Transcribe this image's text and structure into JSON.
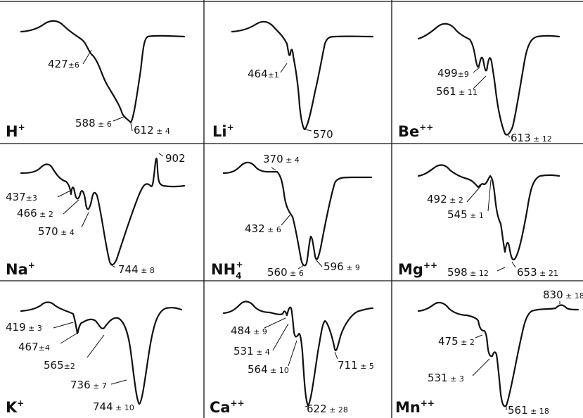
{
  "panels": [
    {
      "id": "H",
      "ion": {
        "base": "H",
        "sup": "+",
        "sub": ""
      },
      "bands": [
        {
          "wavenumber": "427",
          "error": "6"
        },
        {
          "wavenumber": "588",
          "error": "6"
        },
        {
          "wavenumber": "612",
          "error": "4"
        }
      ]
    },
    {
      "id": "Li",
      "ion": {
        "base": "Li",
        "sup": "+",
        "sub": ""
      },
      "bands": [
        {
          "wavenumber": "464",
          "error": "1"
        },
        {
          "wavenumber": "570",
          "error": ""
        }
      ]
    },
    {
      "id": "Be",
      "ion": {
        "base": "Be",
        "sup": "++",
        "sub": ""
      },
      "bands": [
        {
          "wavenumber": "499",
          "error": "9"
        },
        {
          "wavenumber": "561",
          "error": "11"
        },
        {
          "wavenumber": "613",
          "error": "12"
        }
      ]
    },
    {
      "id": "Na",
      "ion": {
        "base": "Na",
        "sup": "+",
        "sub": ""
      },
      "bands": [
        {
          "wavenumber": "437",
          "error": "3"
        },
        {
          "wavenumber": "466",
          "error": "2"
        },
        {
          "wavenumber": "570",
          "error": "4"
        },
        {
          "wavenumber": "744",
          "error": "8"
        },
        {
          "wavenumber": "902",
          "error": ""
        }
      ]
    },
    {
      "id": "NH4",
      "ion": {
        "base": "NH",
        "sup": "+",
        "sub": "4"
      },
      "bands": [
        {
          "wavenumber": "370",
          "error": "4"
        },
        {
          "wavenumber": "432",
          "error": "6"
        },
        {
          "wavenumber": "560",
          "error": "6"
        },
        {
          "wavenumber": "596",
          "error": "9"
        }
      ]
    },
    {
      "id": "Mg",
      "ion": {
        "base": "Mg",
        "sup": "++",
        "sub": ""
      },
      "bands": [
        {
          "wavenumber": "492",
          "error": "2"
        },
        {
          "wavenumber": "545",
          "error": "1"
        },
        {
          "wavenumber": "598",
          "error": "12"
        },
        {
          "wavenumber": "653",
          "error": "21"
        }
      ]
    },
    {
      "id": "K",
      "ion": {
        "base": "K",
        "sup": "+",
        "sub": ""
      },
      "bands": [
        {
          "wavenumber": "419",
          "error": "3"
        },
        {
          "wavenumber": "467",
          "error": "4"
        },
        {
          "wavenumber": "565",
          "error": "2"
        },
        {
          "wavenumber": "736",
          "error": "7"
        },
        {
          "wavenumber": "744",
          "error": "10"
        }
      ]
    },
    {
      "id": "Ca",
      "ion": {
        "base": "Ca",
        "sup": "++",
        "sub": ""
      },
      "bands": [
        {
          "wavenumber": "484",
          "error": "9"
        },
        {
          "wavenumber": "531",
          "error": "4"
        },
        {
          "wavenumber": "564",
          "error": "10"
        },
        {
          "wavenumber": "711",
          "error": "5"
        },
        {
          "wavenumber": "622",
          "error": "28"
        }
      ]
    },
    {
      "id": "Mn",
      "ion": {
        "base": "Mn",
        "sup": "++",
        "sub": ""
      },
      "bands": [
        {
          "wavenumber": "830",
          "error": "18"
        },
        {
          "wavenumber": "475",
          "error": "2"
        },
        {
          "wavenumber": "531",
          "error": "3"
        },
        {
          "wavenumber": "561",
          "error": "18"
        }
      ]
    }
  ]
}
